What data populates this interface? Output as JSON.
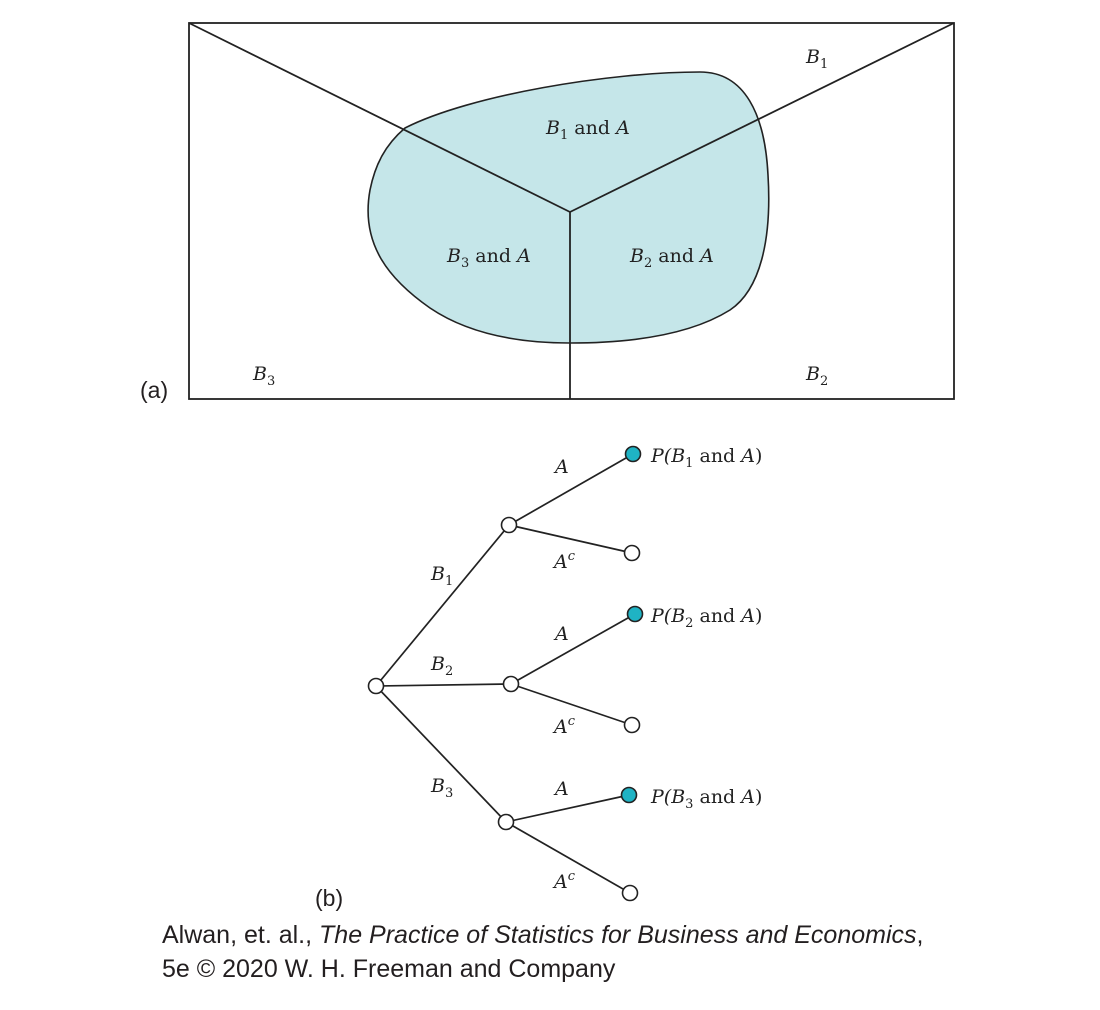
{
  "panel_a": {
    "panel_label": "(a)",
    "region_labels": [
      {
        "main": "B",
        "sub": "1"
      },
      {
        "main": "B",
        "sub": "2"
      },
      {
        "main": "B",
        "sub": "3"
      }
    ],
    "intersection_labels": [
      {
        "main": "B",
        "sub": "1",
        "rest": " and ",
        "event": "A"
      },
      {
        "main": "B",
        "sub": "2",
        "rest": " and ",
        "event": "A"
      },
      {
        "main": "B",
        "sub": "3",
        "rest": " and ",
        "event": "A"
      }
    ],
    "event_fill_color": "#c5e6e9"
  },
  "panel_b": {
    "panel_label": "(b)",
    "first_branches": [
      {
        "main": "B",
        "sub": "1"
      },
      {
        "main": "B",
        "sub": "2"
      },
      {
        "main": "B",
        "sub": "3"
      }
    ],
    "second_branch_A": "A",
    "second_branch_Ac": {
      "main": "A",
      "sup": "c"
    },
    "outcome_labels": [
      {
        "prefix": "P(",
        "main": "B",
        "sub": "1",
        "rest": " and ",
        "event": "A",
        "suffix": ")"
      },
      {
        "prefix": "P(",
        "main": "B",
        "sub": "2",
        "rest": " and ",
        "event": "A",
        "suffix": ")"
      },
      {
        "prefix": "P(",
        "main": "B",
        "sub": "3",
        "rest": " and ",
        "event": "A",
        "suffix": ")"
      }
    ],
    "highlight_node_color": "#1fb3c4"
  },
  "credit": {
    "authors": "Alwan, et. al., ",
    "book_title": "The Practice of Statistics for Business and Economics",
    "after_title": ",",
    "edition_line": "5e © 2020 W. H. Freeman and Company"
  }
}
